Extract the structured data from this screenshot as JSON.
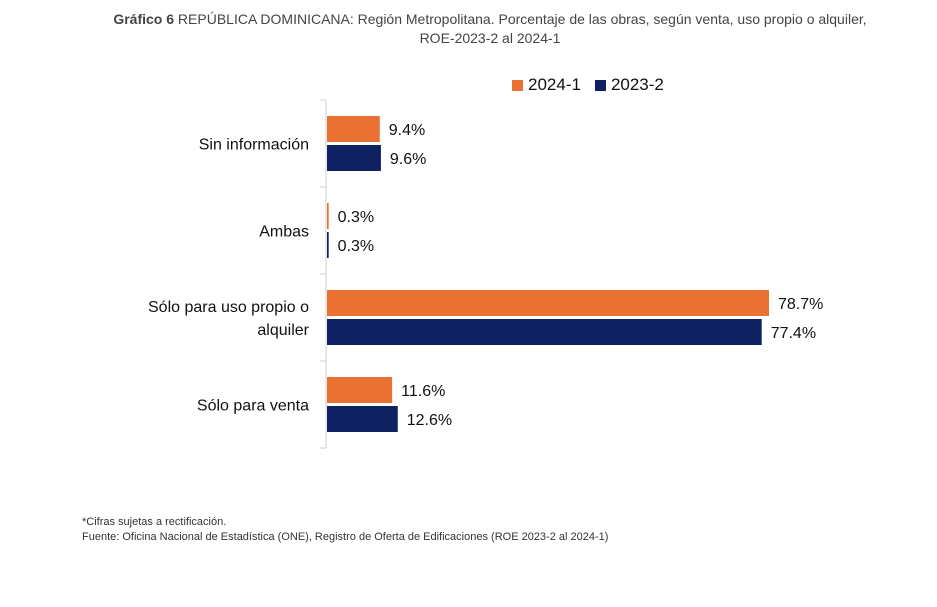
{
  "title": {
    "lead": "Gráfico 6",
    "rest": " REPÚBLICA DOMINICANA: Región Metropolitana. Porcentaje de las obras, según venta, uso propio o alquiler, ROE-2023-2 al 2024-1"
  },
  "chart_data": {
    "type": "bar",
    "orientation": "horizontal",
    "title": "Gráfico 6 REPÚBLICA DOMINICANA: Región Metropolitana. Porcentaje de las obras, según venta, uso propio o alquiler, ROE-2023-2 al 2024-1",
    "categories": [
      "Sin información",
      "Ambas",
      "Sólo para uso propio o alquiler",
      "Sólo para venta"
    ],
    "category_lines": [
      [
        "Sin información"
      ],
      [
        "Ambas"
      ],
      [
        "Sólo para uso propio o",
        "alquiler"
      ],
      [
        "Sólo para venta"
      ]
    ],
    "series": [
      {
        "name": "2024-1",
        "color": "#E97132",
        "values": [
          9.4,
          0.3,
          78.7,
          11.6
        ],
        "labels": [
          "9.4%",
          "0.3%",
          "78.7%",
          "11.6%"
        ]
      },
      {
        "name": "2023-2",
        "color": "#0E2160",
        "values": [
          9.6,
          0.3,
          77.4,
          12.6
        ],
        "labels": [
          "9.6%",
          "0.3%",
          "77.4%",
          "12.6%"
        ]
      }
    ],
    "xlim": [
      0,
      80
    ],
    "xlabel": "",
    "ylabel": "",
    "grid": false,
    "legend_position": "top-right"
  },
  "legend": [
    {
      "label": "2024-1",
      "color": "#E97132"
    },
    {
      "label": "2023-2",
      "color": "#0E2160"
    }
  ],
  "footnotes": {
    "note": "*Cifras sujetas a rectificación.",
    "source": "Fuente: Oficina Nacional de Estadística (ONE), Registro de Oferta de Edificaciones (ROE 2023-2 al 2024-1)"
  }
}
